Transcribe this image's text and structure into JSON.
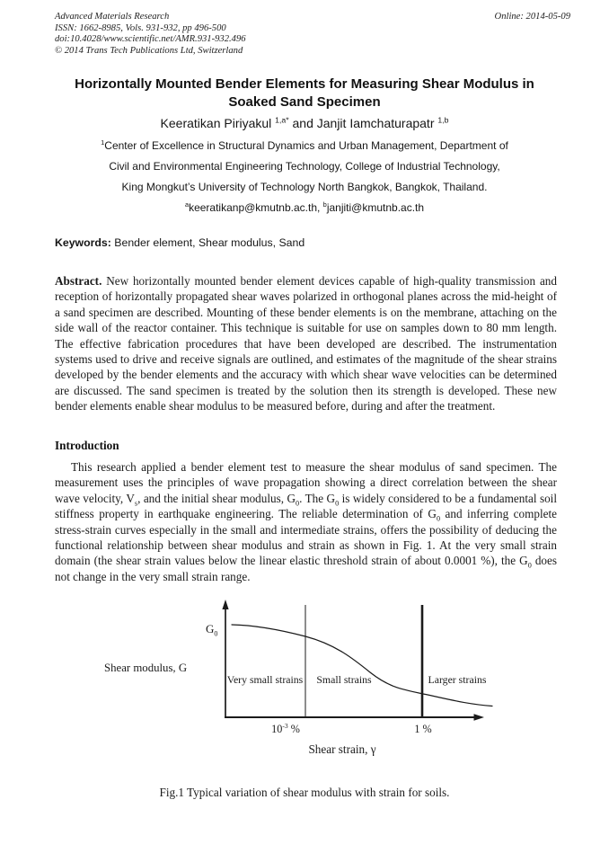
{
  "journal_header": {
    "line1": "Advanced Materials Research",
    "line2": "ISSN: 1662-8985, Vols. 931-932, pp 496-500",
    "line3": "doi:10.4028/www.scientific.net/AMR.931-932.496",
    "line4": "© 2014 Trans Tech Publications Ltd, Switzerland",
    "online_date": "Online: 2014-05-09"
  },
  "title": "Horizontally Mounted Bender Elements for Measuring Shear Modulus in Soaked Sand Specimen",
  "authors_rich": [
    {
      "t": "Keeratikan Piriyakul "
    },
    {
      "t": "1,a*",
      "style": "sup"
    },
    {
      "t": " and Janjit Iamchaturapatr "
    },
    {
      "t": "1,b",
      "style": "sup"
    }
  ],
  "affiliation": {
    "line1_rich": [
      {
        "t": "1",
        "style": "sup"
      },
      {
        "t": "Center of Excellence in Structural Dynamics and Urban Management, Department of"
      }
    ],
    "line2": "Civil and Environmental Engineering Technology, College of Industrial Technology,",
    "line3": "King Mongkut’s University of Technology North Bangkok, Bangkok, Thailand.",
    "line4_rich": [
      {
        "t": "a",
        "style": "sup"
      },
      {
        "t": "keeratikanp@kmutnb.ac.th, "
      },
      {
        "t": "b",
        "style": "sup"
      },
      {
        "t": "janjiti@kmutnb.ac.th"
      }
    ]
  },
  "keywords_rich": [
    {
      "t": "Keywords:",
      "style": "b"
    },
    {
      "t": " Bender element, Shear modulus, Sand"
    }
  ],
  "abstract_rich": [
    {
      "t": "Abstract.",
      "style": "b"
    },
    {
      "t": " New horizontally mounted bender element devices capable of high-quality transmission and reception of horizontally propagated shear waves polarized in orthogonal planes across the mid-height of a sand specimen are described. Mounting of these bender elements is on the membrane, attaching on the side wall of the reactor container. This technique is suitable for use on samples down to 80 mm length. The effective fabrication procedures that have been developed are described. The instrumentation systems used to drive and receive signals are outlined, and estimates of the magnitude of the shear strains developed by the bender elements and the accuracy with which shear wave velocities can be determined are discussed. The sand specimen is treated by the solution then its strength is developed. These new bender elements enable shear modulus to be measured before, during and after the treatment."
    }
  ],
  "introduction": {
    "heading": "Introduction",
    "paragraph_rich": [
      {
        "t": "This research applied a bender element test to measure the shear modulus of sand specimen. The measurement uses the principles of wave propagation showing a direct correlation between the shear wave velocity, V"
      },
      {
        "t": "s",
        "style": "sub"
      },
      {
        "t": ", and the initial shear modulus, G"
      },
      {
        "t": "0",
        "style": "sub"
      },
      {
        "t": ". The G"
      },
      {
        "t": "0",
        "style": "sub"
      },
      {
        "t": " is widely considered to be a fundamental soil stiffness property in earthquake engineering. The reliable determination of G"
      },
      {
        "t": "0",
        "style": "sub"
      },
      {
        "t": " and inferring complete stress-strain curves especially in the small and intermediate strains, offers the possibility of deducing the functional relationship between shear modulus and strain as shown in Fig. 1. At the very small strain domain (the shear strain values below the linear elastic threshold strain of about 0.0001 %), the G"
      },
      {
        "t": "0",
        "style": "sub"
      },
      {
        "t": " does not change in the very small strain range."
      }
    ]
  },
  "figure": {
    "type": "schematic-line",
    "g0_rich": [
      {
        "t": "G"
      },
      {
        "t": "0",
        "style": "sub"
      }
    ],
    "y_axis_label": "Shear modulus, G",
    "region1": "Very small strains",
    "region2": "Small strains",
    "region3": "Larger strains",
    "tick1_rich": [
      {
        "t": "10"
      },
      {
        "t": "-3",
        "style": "sup"
      },
      {
        "t": " %"
      }
    ],
    "tick2": "1 %",
    "x_axis_label": "Shear strain, γ",
    "caption": "Fig.1 Typical variation of shear modulus with strain for soils."
  }
}
